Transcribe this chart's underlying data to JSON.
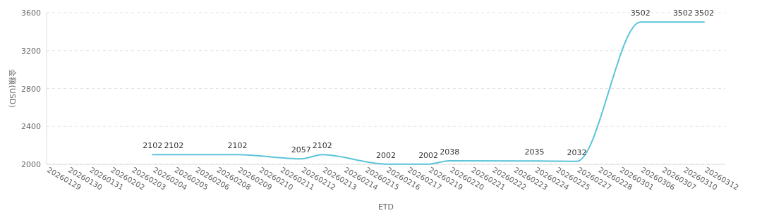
{
  "chart_data": {
    "type": "line",
    "xlabel": "ETD",
    "ylabel": "金额(USD)",
    "categories": [
      "20260129",
      "20260130",
      "20260131",
      "20260202",
      "20260203",
      "20260204",
      "20260205",
      "20260206",
      "20260208",
      "20260209",
      "20260210",
      "20260211",
      "20260212",
      "20260213",
      "20260214",
      "20260215",
      "20260216",
      "20260217",
      "20260219",
      "20260220",
      "20260221",
      "20260222",
      "20260223",
      "20260224",
      "20260225",
      "20260227",
      "20260228",
      "20260301",
      "20260306",
      "20260307",
      "20260310",
      "20260312",
      null
    ],
    "series": [
      {
        "color": "#5bc3d8",
        "values": [
          null,
          null,
          null,
          null,
          null,
          2102,
          2102,
          null,
          null,
          2102,
          null,
          null,
          2057,
          2102,
          null,
          null,
          2002,
          null,
          2002,
          2038,
          null,
          null,
          null,
          2035,
          null,
          2032,
          null,
          null,
          3502,
          null,
          3502,
          3502,
          null
        ]
      }
    ],
    "ylim": [
      2000,
      3600
    ],
    "yticks": [
      2000,
      2400,
      2800,
      3200,
      3600
    ],
    "grid": "y",
    "data_labels": true,
    "marker": "none"
  }
}
